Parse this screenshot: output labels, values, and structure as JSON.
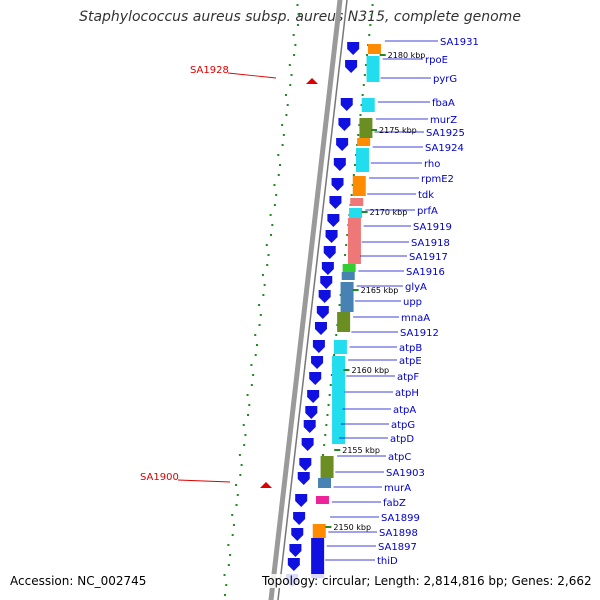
{
  "title": "Staphylococcus aureus subsp. aureus N315, complete genome",
  "accession": "Accession: NC_002745",
  "topology": "Topology: circular; Length: 2,814,816 bp; Genes: 2,662",
  "colors": {
    "backbone": "#9a9a9a",
    "gene_arrow": "#1010e0",
    "label": "#0000cc",
    "feature_label": "#dd0000",
    "tick": "#228822",
    "cds_cyan": "#22ddee",
    "cds_olive": "#6b8e23",
    "cds_orange": "#ff8c00",
    "cds_salmon": "#ee7777",
    "cds_steel": "#4682b4",
    "cds_magenta": "#ee2299",
    "cds_green": "#33cc33"
  },
  "kbp_ticks": [
    "2180 kbp",
    "2175 kbp",
    "2170 kbp",
    "2165 kbp",
    "2160 kbp",
    "2155 kbp",
    "2150 kbp"
  ],
  "right_labels": [
    "SA1931",
    "rpoE",
    "pyrG",
    "fbaA",
    "murZ",
    "SA1925",
    "SA1924",
    "rho",
    "rpmE2",
    "tdk",
    "prfA",
    "SA1919",
    "SA1918",
    "SA1917",
    "SA1916",
    "glyA",
    "upp",
    "mnaA",
    "SA1912",
    "atpB",
    "atpE",
    "atpF",
    "atpH",
    "atpA",
    "atpG",
    "atpD",
    "atpC",
    "SA1903",
    "murA",
    "fabZ",
    "SA1899",
    "SA1898",
    "SA1897",
    "thiD"
  ],
  "left_labels": [
    "SA1928",
    "SA1900"
  ]
}
